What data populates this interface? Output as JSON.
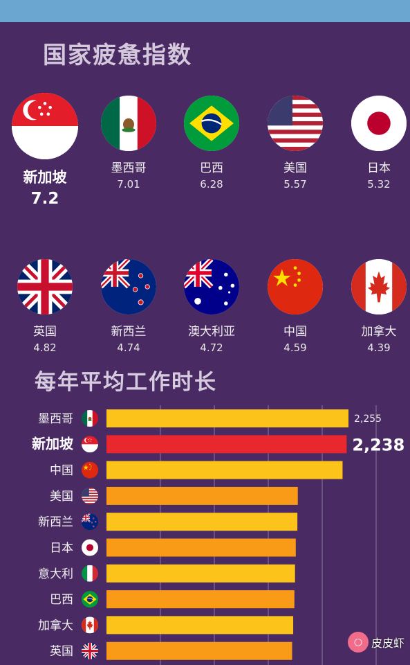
{
  "fatigue": {
    "title": "国家疲惫指数",
    "countries": [
      {
        "name": "新加坡",
        "value": "7.2",
        "flag": "singapore-flag"
      },
      {
        "name": "墨西哥",
        "value": "7.01",
        "flag": "mexico-flag"
      },
      {
        "name": "巴西",
        "value": "6.28",
        "flag": "brazil-flag"
      },
      {
        "name": "美国",
        "value": "5.57",
        "flag": "usa-flag"
      },
      {
        "name": "日本",
        "value": "5.32",
        "flag": "japan-flag"
      },
      {
        "name": "英国",
        "value": "4.82",
        "flag": "uk-flag"
      },
      {
        "name": "新西兰",
        "value": "4.74",
        "flag": "newzealand-flag"
      },
      {
        "name": "澳大利亚",
        "value": "4.72",
        "flag": "australia-flag"
      },
      {
        "name": "中国",
        "value": "4.59",
        "flag": "china-flag"
      },
      {
        "name": "加拿大",
        "value": "4.39",
        "flag": "canada-flag"
      }
    ]
  },
  "chart_data": {
    "type": "bar",
    "orientation": "horizontal",
    "title": "每年平均工作时长",
    "categories": [
      "墨西哥",
      "新加坡",
      "中国",
      "美国",
      "新西兰",
      "日本",
      "意大利",
      "巴西",
      "加拿大",
      "英国"
    ],
    "values": [
      2255,
      2238,
      2200,
      1783,
      1779,
      1764,
      1757,
      1751,
      1740,
      1730
    ],
    "value_labels": [
      "2,255",
      "2,238",
      "",
      "",
      "",
      "",
      "",
      "",
      "",
      ""
    ],
    "highlight": "新加坡",
    "colors": {
      "highlight": "#e8282e",
      "yellow": "#fcc31a",
      "orange": "#f99b16",
      "grid": "#8a7a98"
    },
    "bar_colors": [
      "yellow",
      "highlight",
      "yellow",
      "orange",
      "yellow",
      "orange",
      "yellow",
      "orange",
      "yellow",
      "orange"
    ],
    "grid": true
  },
  "watermark": {
    "text": "皮皮虾"
  }
}
